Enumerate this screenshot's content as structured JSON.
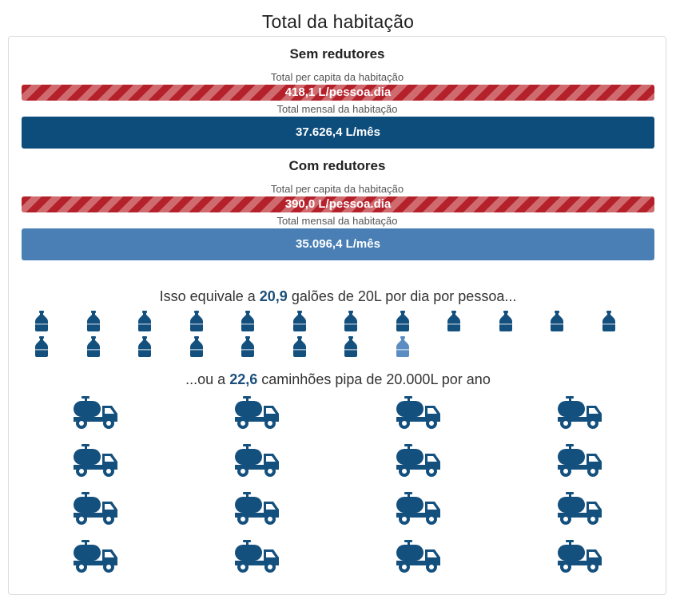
{
  "title": "Total da habitação",
  "sem": {
    "heading": "Sem redutores",
    "per_capita_label": "Total per capita da habitação",
    "per_capita_value": "418,1 L/pessoa.dia",
    "monthly_label": "Total mensal da habitação",
    "monthly_value": "37.626,4 L/mês"
  },
  "com": {
    "heading": "Com redutores",
    "per_capita_label": "Total per capita da habitação",
    "per_capita_value": "390,0 L/pessoa.dia",
    "monthly_label": "Total mensal da habitação",
    "monthly_value": "35.096,4 L/mês"
  },
  "gallons": {
    "prefix": "Isso equivale a",
    "value": "20,9",
    "suffix": "galões de 20L por dia por pessoa...",
    "count_full": 19,
    "count_partial": 1
  },
  "trucks": {
    "prefix": "...ou a",
    "value": "22,6",
    "suffix": "caminhões pipa de 20.000L por ano",
    "visible_count": 16
  },
  "colors": {
    "dark_blue": "#0d4d7c",
    "light_blue": "#4a7fb5",
    "red_hatch": "#b5212b",
    "icon_blue": "#14507e",
    "icon_partial": "#5b8cc2"
  },
  "icons": {
    "gallon": "water-gallon-icon",
    "truck": "water-truck-icon"
  }
}
